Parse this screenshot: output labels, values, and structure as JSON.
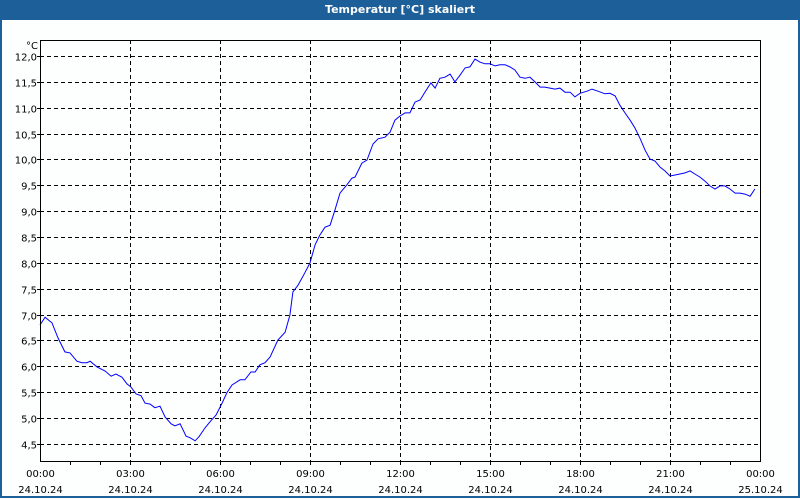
{
  "window": {
    "title": "Temperatur [°C] skaliert"
  },
  "colors": {
    "titlebar": "#1d5f98",
    "series": "#0000ff",
    "grid": "#000000"
  },
  "chart_data": {
    "type": "line",
    "title": "Temperatur [°C] skaliert",
    "ylabel": "°C",
    "xlabel": "",
    "ylim": [
      4.17,
      12.31
    ],
    "xlim_hours": [
      0,
      24
    ],
    "grid": true,
    "y_ticks": [
      {
        "value": 12.0,
        "label": "12,0"
      },
      {
        "value": 11.5,
        "label": "11,5"
      },
      {
        "value": 11.0,
        "label": "11,0"
      },
      {
        "value": 10.5,
        "label": "10,5"
      },
      {
        "value": 10.0,
        "label": "10,0"
      },
      {
        "value": 9.5,
        "label": "9,5"
      },
      {
        "value": 9.0,
        "label": "9,0"
      },
      {
        "value": 8.5,
        "label": "8,5"
      },
      {
        "value": 8.0,
        "label": "8,0"
      },
      {
        "value": 7.5,
        "label": "7,5"
      },
      {
        "value": 7.0,
        "label": "7,0"
      },
      {
        "value": 6.5,
        "label": "6,5"
      },
      {
        "value": 6.0,
        "label": "6,0"
      },
      {
        "value": 5.5,
        "label": "5,5"
      },
      {
        "value": 5.0,
        "label": "5,0"
      },
      {
        "value": 4.5,
        "label": "4,5"
      }
    ],
    "x_ticks": [
      {
        "hour": 0,
        "time": "00:00",
        "date": "24.10.24"
      },
      {
        "hour": 3,
        "time": "03:00",
        "date": "24.10.24"
      },
      {
        "hour": 6,
        "time": "06:00",
        "date": "24.10.24"
      },
      {
        "hour": 9,
        "time": "09:00",
        "date": "24.10.24"
      },
      {
        "hour": 12,
        "time": "12:00",
        "date": "24.10.24"
      },
      {
        "hour": 15,
        "time": "15:00",
        "date": "24.10.24"
      },
      {
        "hour": 18,
        "time": "18:00",
        "date": "24.10.24"
      },
      {
        "hour": 21,
        "time": "21:00",
        "date": "24.10.24"
      },
      {
        "hour": 24,
        "time": "00:00",
        "date": "25.10.24"
      }
    ],
    "series": [
      {
        "name": "Temperatur",
        "x_hours": [
          0,
          0.17,
          0.4,
          0.6,
          0.83,
          1,
          1.23,
          1.4,
          1.57,
          1.67,
          1.9,
          2.17,
          2.37,
          2.53,
          2.73,
          2.9,
          3.03,
          3.2,
          3.37,
          3.5,
          3.67,
          3.83,
          4,
          4.17,
          4.37,
          4.5,
          4.67,
          4.87,
          5,
          5.17,
          5.3,
          5.5,
          5.67,
          5.87,
          6.07,
          6.23,
          6.4,
          6.67,
          6.83,
          7.03,
          7.17,
          7.33,
          7.5,
          7.67,
          7.93,
          8.17,
          8.33,
          8.43,
          8.6,
          8.83,
          9,
          9.17,
          9.33,
          9.5,
          9.67,
          9.83,
          10,
          10.23,
          10.4,
          10.5,
          10.73,
          10.9,
          11.1,
          11.27,
          11.5,
          11.67,
          11.83,
          12,
          12.17,
          12.33,
          12.5,
          12.67,
          12.83,
          13.03,
          13.17,
          13.33,
          13.5,
          13.67,
          13.83,
          14,
          14.17,
          14.33,
          14.5,
          14.67,
          14.83,
          15,
          15.17,
          15.33,
          15.5,
          15.67,
          15.83,
          16,
          16.17,
          16.33,
          16.5,
          16.67,
          16.83,
          17,
          17.17,
          17.33,
          17.5,
          17.67,
          17.83,
          18,
          18.23,
          18.4,
          18.6,
          18.83,
          19,
          19.17,
          19.33,
          19.5,
          19.67,
          19.83,
          20,
          20.17,
          20.33,
          20.5,
          20.67,
          20.83,
          21,
          21.17,
          21.33,
          21.5,
          21.67,
          21.83,
          22,
          22.17,
          22.33,
          22.5,
          22.67,
          22.83,
          23,
          23.17,
          23.33,
          23.5,
          23.67,
          23.83
        ],
        "values": [
          6.8,
          6.95,
          6.84,
          6.55,
          6.28,
          6.26,
          6.1,
          6.07,
          6.07,
          6.1,
          5.99,
          5.91,
          5.81,
          5.85,
          5.79,
          5.66,
          5.6,
          5.47,
          5.43,
          5.29,
          5.27,
          5.2,
          5.23,
          5.02,
          4.89,
          4.85,
          4.89,
          4.65,
          4.62,
          4.56,
          4.64,
          4.81,
          4.93,
          5.06,
          5.29,
          5.49,
          5.64,
          5.74,
          5.74,
          5.89,
          5.89,
          6.03,
          6.07,
          6.18,
          6.51,
          6.66,
          6.99,
          7.44,
          7.57,
          7.81,
          8.0,
          8.35,
          8.54,
          8.69,
          8.73,
          9.02,
          9.35,
          9.51,
          9.64,
          9.66,
          9.93,
          9.99,
          10.3,
          10.4,
          10.43,
          10.53,
          10.76,
          10.84,
          10.9,
          10.9,
          11.11,
          11.15,
          11.3,
          11.48,
          11.38,
          11.57,
          11.59,
          11.65,
          11.5,
          11.63,
          11.77,
          11.79,
          11.94,
          11.88,
          11.85,
          11.85,
          11.81,
          11.83,
          11.83,
          11.79,
          11.73,
          11.59,
          11.57,
          11.59,
          11.5,
          11.4,
          11.4,
          11.38,
          11.36,
          11.38,
          11.3,
          11.3,
          11.21,
          11.28,
          11.32,
          11.36,
          11.32,
          11.27,
          11.28,
          11.23,
          11.05,
          10.9,
          10.76,
          10.61,
          10.41,
          10.18,
          10.01,
          9.97,
          9.85,
          9.78,
          9.68,
          9.7,
          9.72,
          9.74,
          9.78,
          9.72,
          9.66,
          9.58,
          9.49,
          9.43,
          9.49,
          9.49,
          9.43,
          9.35,
          9.35,
          9.33,
          9.29,
          9.43
        ]
      }
    ]
  }
}
